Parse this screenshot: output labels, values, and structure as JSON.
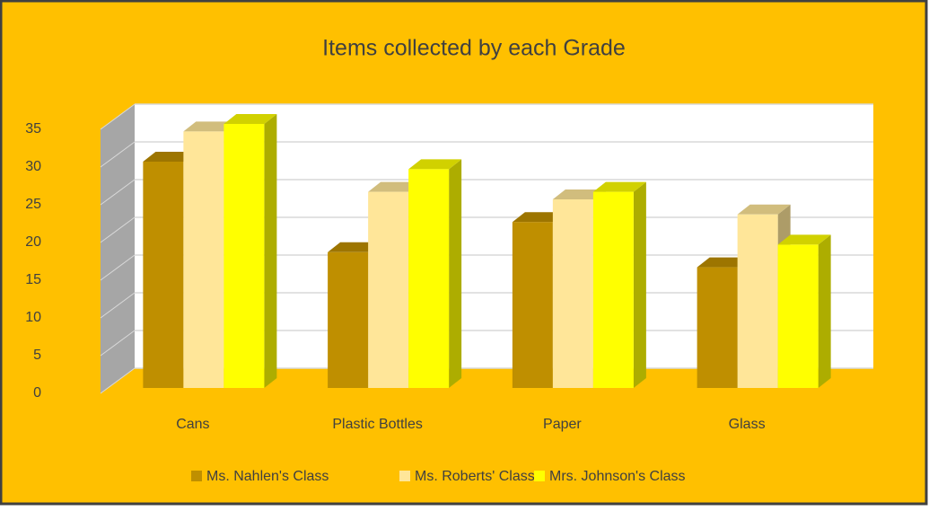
{
  "chart_data": {
    "type": "bar3d",
    "title": "Items collected by each Grade",
    "categories": [
      "Cans",
      "Plastic Bottles",
      "Paper",
      "Glass"
    ],
    "series": [
      {
        "name": "Ms. Nahlen's Class",
        "color": "#BF8F00",
        "values": [
          30,
          18,
          22,
          16
        ]
      },
      {
        "name": "Ms. Roberts' Class",
        "color": "#FFE699",
        "values": [
          34,
          26,
          25,
          23
        ]
      },
      {
        "name": "Mrs. Johnson's Class",
        "color": "#FFFF00",
        "values": [
          35,
          29,
          26,
          19
        ]
      }
    ],
    "ylim": [
      0,
      35
    ],
    "yticks": [
      0,
      5,
      10,
      15,
      20,
      25,
      30,
      35
    ],
    "grid": true,
    "legend": "bottom"
  }
}
